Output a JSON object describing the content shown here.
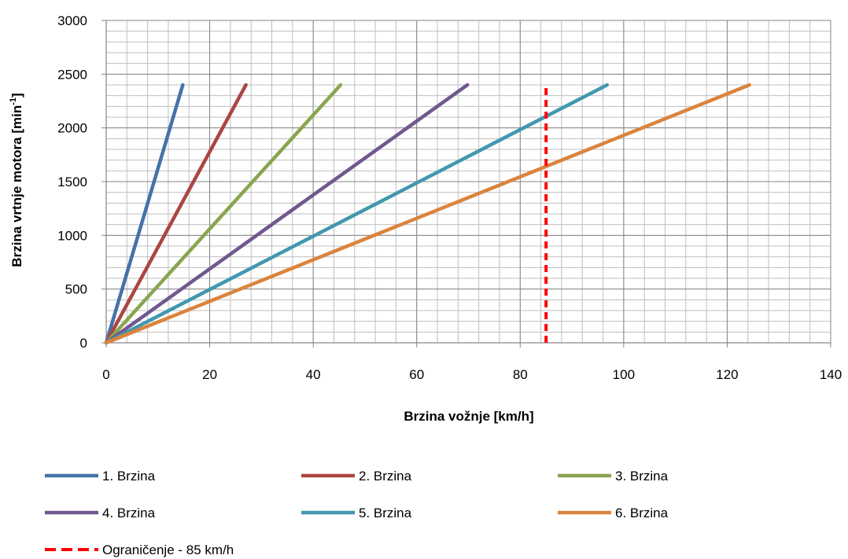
{
  "chart_data": {
    "type": "line",
    "title": "",
    "xlabel": "Brzina vožnje [km/h]",
    "ylabel_main": "Brzina vrtnje motora [min",
    "ylabel_sup": "-1",
    "ylabel_end": "]",
    "xlim": [
      0,
      140
    ],
    "ylim": [
      0,
      3000
    ],
    "x_ticks": [
      0,
      20,
      40,
      60,
      80,
      100,
      120,
      140
    ],
    "y_ticks": [
      0,
      500,
      1000,
      1500,
      2000,
      2500,
      3000
    ],
    "x_tick_labels": [
      "0",
      "20",
      "40",
      "60",
      "80",
      "100",
      "120",
      "140"
    ],
    "y_tick_labels": [
      "0",
      "500",
      "1000",
      "1500",
      "2000",
      "2500",
      "3000"
    ],
    "grid": true,
    "legend_position": "bottom",
    "series": [
      {
        "name": "1. Brzina",
        "color": "#4572A7",
        "x": [
          0,
          14.8
        ],
        "y": [
          0,
          2400
        ]
      },
      {
        "name": "2. Brzina",
        "color": "#AA4643",
        "x": [
          0,
          27
        ],
        "y": [
          0,
          2400
        ]
      },
      {
        "name": "3. Brzina",
        "color": "#89A54E",
        "x": [
          0,
          45.3
        ],
        "y": [
          0,
          2400
        ]
      },
      {
        "name": "4. Brzina",
        "color": "#71588F",
        "x": [
          0,
          69.8
        ],
        "y": [
          0,
          2400
        ]
      },
      {
        "name": "5. Brzina",
        "color": "#4198AF",
        "x": [
          0,
          96.8
        ],
        "y": [
          0,
          2400
        ]
      },
      {
        "name": "6. Brzina",
        "color": "#DB843D",
        "x": [
          0,
          124.3
        ],
        "y": [
          0,
          2400
        ]
      },
      {
        "name": "Ograničenje - 85 km/h",
        "color": "#FF0000",
        "dashed": true,
        "x": [
          85,
          85
        ],
        "y": [
          0,
          2400
        ]
      }
    ]
  }
}
